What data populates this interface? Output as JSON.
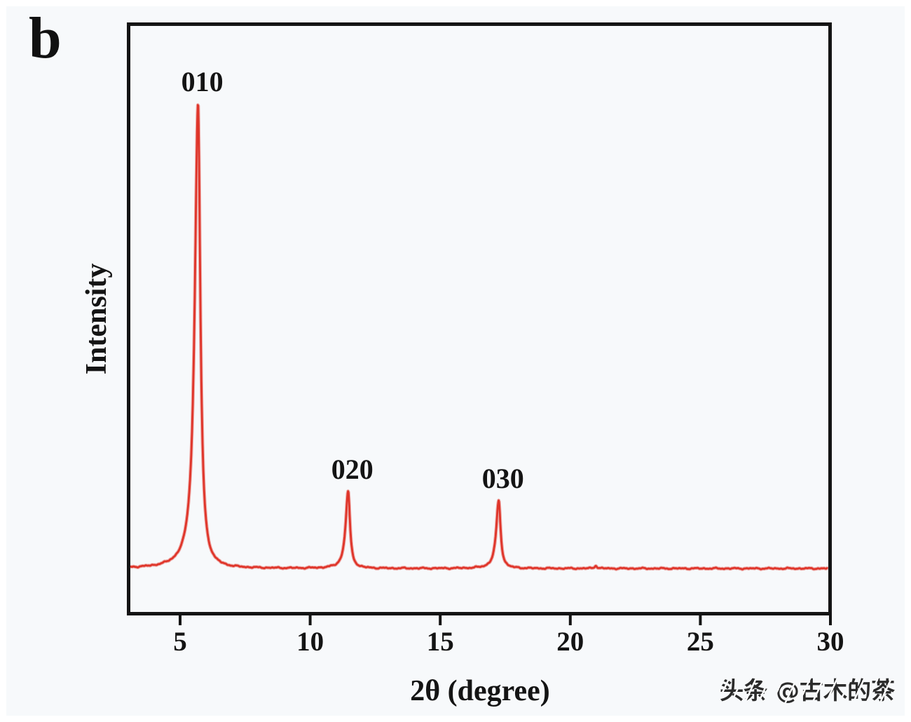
{
  "panel_label": "b",
  "watermark": "头条 @古木的茶",
  "colors": {
    "curve": "#df352a",
    "axis": "#141414",
    "text": "#141414",
    "watermark": "#2b2b2b",
    "background": "#f7f9fb"
  },
  "chart_data": {
    "type": "line",
    "title": "",
    "xlabel": "2θ (degree)",
    "ylabel": "Intensity",
    "x_range": [
      3.1,
      30
    ],
    "x_ticks": [
      5,
      10,
      15,
      20,
      25,
      30
    ],
    "y_ticks": [],
    "grid": false,
    "legend": null,
    "baseline_rel": 0.08,
    "peaks": [
      {
        "label": "010",
        "center_2theta": 5.69,
        "rel_height": 1.0,
        "hwhm_left_deg": 0.15,
        "hwhm_right_deg": 0.105
      },
      {
        "label": "020",
        "center_2theta": 11.46,
        "rel_height": 0.166,
        "hwhm_left_deg": 0.115,
        "hwhm_right_deg": 0.085
      },
      {
        "label": "030",
        "center_2theta": 17.25,
        "rel_height": 0.146,
        "hwhm_left_deg": 0.115,
        "hwhm_right_deg": 0.085
      }
    ],
    "minor_features": [
      {
        "center_2theta": 20.98,
        "rel_height": 0.006,
        "hwhm_left_deg": 0.06,
        "hwhm_right_deg": 0.06
      }
    ],
    "noise_amplitude_rel": 0.0007
  }
}
